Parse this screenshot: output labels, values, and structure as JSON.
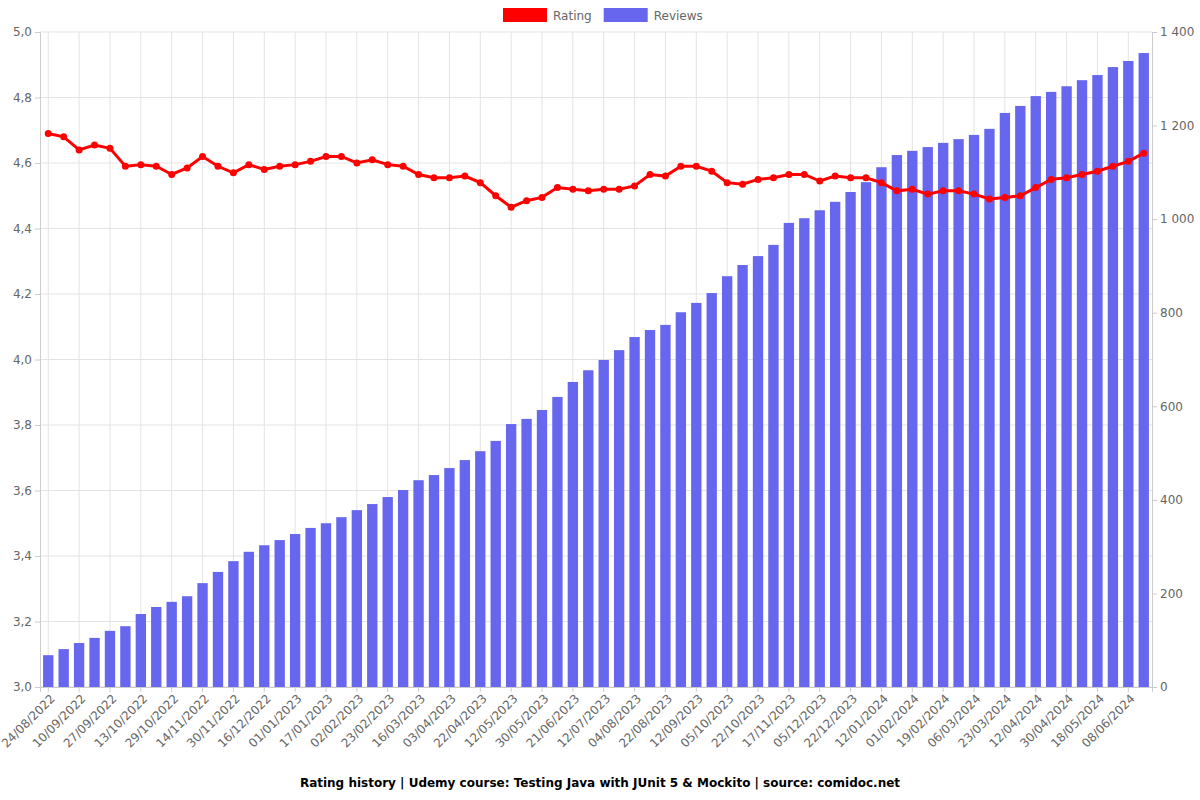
{
  "chart_data": {
    "type": "bar",
    "title": "Rating history | Udemy course: Testing Java with JUnit 5 & Mockito | source: comidoc.net",
    "categories": [
      "24/08/2022",
      null,
      "10/09/2022",
      null,
      "27/09/2022",
      null,
      "13/10/2022",
      null,
      "29/10/2022",
      null,
      "14/11/2022",
      null,
      "30/11/2022",
      null,
      "16/12/2022",
      null,
      "01/01/2023",
      null,
      "17/01/2023",
      null,
      "02/02/2023",
      null,
      "23/02/2023",
      null,
      "16/03/2023",
      null,
      "03/04/2023",
      null,
      "22/04/2023",
      null,
      "12/05/2023",
      null,
      "30/05/2023",
      null,
      "21/06/2023",
      null,
      "12/07/2023",
      null,
      "04/08/2023",
      null,
      "22/08/2023",
      null,
      "12/09/2023",
      null,
      "05/10/2023",
      null,
      "22/10/2023",
      null,
      "17/11/2023",
      null,
      "05/12/2023",
      null,
      "22/12/2023",
      null,
      "12/01/2024",
      null,
      "01/02/2024",
      null,
      "19/02/2024",
      null,
      "06/03/2024",
      null,
      "23/03/2024",
      null,
      "12/04/2024",
      null,
      "30/04/2024",
      null,
      "18/05/2024",
      null,
      "08/06/2024",
      null
    ],
    "series": [
      {
        "name": "Rating",
        "type": "line",
        "color": "#ff0000",
        "marker": "circle",
        "values": [
          4.69,
          4.68,
          4.64,
          4.655,
          4.645,
          4.59,
          4.595,
          4.59,
          4.565,
          4.585,
          4.62,
          4.59,
          4.57,
          4.595,
          4.58,
          4.59,
          4.595,
          4.605,
          4.62,
          4.62,
          4.6,
          4.61,
          4.595,
          4.59,
          4.565,
          4.555,
          4.555,
          4.56,
          4.54,
          4.5,
          4.465,
          4.485,
          4.495,
          4.525,
          4.52,
          4.515,
          4.52,
          4.52,
          4.53,
          4.565,
          4.56,
          4.59,
          4.59,
          4.575,
          4.54,
          4.535,
          4.55,
          4.555,
          4.565,
          4.565,
          4.545,
          4.56,
          4.555,
          4.555,
          4.54,
          4.515,
          4.52,
          4.505,
          4.515,
          4.515,
          4.505,
          4.49,
          4.495,
          4.5,
          4.525,
          4.55,
          4.555,
          4.565,
          4.575,
          4.59,
          4.605,
          4.63
        ]
      },
      {
        "name": "Reviews",
        "type": "bar",
        "color": "#6666ee",
        "axis": "y2",
        "values": [
          68,
          81,
          94,
          105,
          120,
          130,
          156,
          171,
          182,
          194,
          222,
          246,
          269,
          289,
          303,
          314,
          327,
          340,
          350,
          363,
          378,
          391,
          406,
          421,
          442,
          453,
          468,
          485,
          504,
          526,
          562,
          573,
          592,
          620,
          652,
          677,
          699,
          720,
          748,
          763,
          774,
          801,
          821,
          842,
          878,
          902,
          921,
          945,
          992,
          1002,
          1019,
          1037,
          1058,
          1079,
          1111,
          1137,
          1146,
          1154,
          1163,
          1171,
          1180,
          1193,
          1227,
          1242,
          1263,
          1272,
          1284,
          1297,
          1308,
          1325,
          1338,
          1355
        ]
      }
    ],
    "ylim": [
      3,
      5
    ],
    "yticks": [
      {
        "value": 3,
        "label": "3,0"
      },
      {
        "value": 3.2,
        "label": "3,2"
      },
      {
        "value": 3.4,
        "label": "3,4"
      },
      {
        "value": 3.6,
        "label": "3,6"
      },
      {
        "value": 3.8,
        "label": "3,8"
      },
      {
        "value": 4,
        "label": "4,0"
      },
      {
        "value": 4.2,
        "label": "4,2"
      },
      {
        "value": 4.4,
        "label": "4,4"
      },
      {
        "value": 4.6,
        "label": "4,6"
      },
      {
        "value": 4.8,
        "label": "4,8"
      },
      {
        "value": 5,
        "label": "5,0"
      }
    ],
    "y2lim": [
      0,
      1400
    ],
    "y2ticks": [
      0,
      200,
      400,
      600,
      800,
      {
        "value": 1000,
        "label": "1 000"
      },
      {
        "value": 1200,
        "label": "1 200"
      },
      {
        "value": 1400,
        "label": "1 400"
      }
    ],
    "grid": true,
    "legend": "top"
  }
}
